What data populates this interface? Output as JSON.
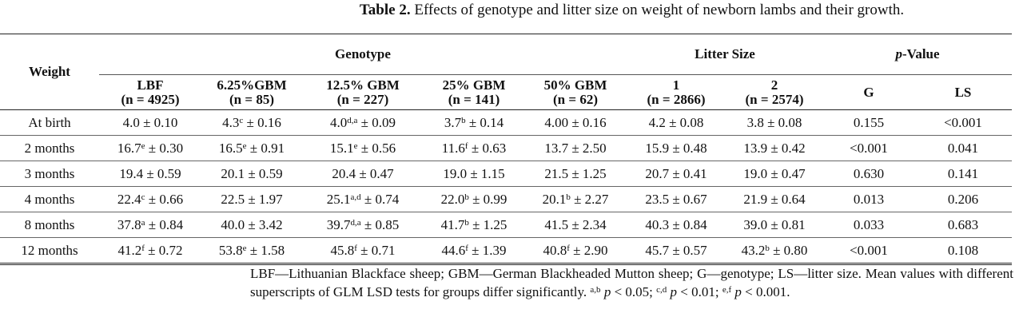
{
  "caption": {
    "label": "Table 2.",
    "text": " Effects of genotype and litter size on weight of newborn lambs and their growth."
  },
  "header": {
    "weight": "Weight",
    "genotype": "Genotype",
    "litter_size": "Litter Size",
    "p_value_p": "p",
    "p_value_rest": "-Value",
    "columns": [
      [
        "LBF",
        "(n = 4925)"
      ],
      [
        "6.25%GBM",
        "(n = 85)"
      ],
      [
        "12.5% GBM",
        "(n = 227)"
      ],
      [
        "25% GBM",
        "(n = 141)"
      ],
      [
        "50% GBM",
        "(n = 62)"
      ],
      [
        "1",
        "(n = 2866)"
      ],
      [
        "2",
        "(n = 2574)"
      ],
      [
        "G",
        ""
      ],
      [
        "LS",
        ""
      ]
    ]
  },
  "rows": [
    {
      "label": "At birth",
      "cells": [
        [
          "4.0",
          "",
          "0.10"
        ],
        [
          "4.3",
          "c",
          "0.16"
        ],
        [
          "4.0",
          "d,a",
          "0.09"
        ],
        [
          "3.7",
          "b",
          "0.14"
        ],
        [
          "4.00",
          "",
          "0.16"
        ],
        [
          "4.2",
          "",
          "0.08"
        ],
        [
          "3.8",
          "",
          "0.08"
        ]
      ],
      "G": "0.155",
      "LS": "<0.001"
    },
    {
      "label": "2 months",
      "cells": [
        [
          "16.7",
          "e",
          "0.30"
        ],
        [
          "16.5",
          "e",
          "0.91"
        ],
        [
          "15.1",
          "e",
          "0.56"
        ],
        [
          "11.6",
          "f",
          "0.63"
        ],
        [
          "13.7",
          "",
          "2.50"
        ],
        [
          "15.9",
          "",
          "0.48"
        ],
        [
          "13.9",
          "",
          "0.42"
        ]
      ],
      "G": "<0.001",
      "LS": "0.041"
    },
    {
      "label": "3 months",
      "cells": [
        [
          "19.4",
          "",
          "0.59"
        ],
        [
          "20.1",
          "",
          "0.59"
        ],
        [
          "20.4",
          "",
          "0.47"
        ],
        [
          "19.0",
          "",
          "1.15"
        ],
        [
          "21.5",
          "",
          "1.25"
        ],
        [
          "20.7",
          "",
          "0.41"
        ],
        [
          "19.0",
          "",
          "0.47"
        ]
      ],
      "G": "0.630",
      "LS": "0.141"
    },
    {
      "label": "4 months",
      "cells": [
        [
          "22.4",
          "c",
          "0.66"
        ],
        [
          "22.5",
          "",
          "1.97"
        ],
        [
          "25.1",
          "a,d",
          "0.74"
        ],
        [
          "22.0",
          "b",
          "0.99"
        ],
        [
          "20.1",
          "b",
          "2.27"
        ],
        [
          "23.5",
          "",
          "0.67"
        ],
        [
          "21.9",
          "",
          "0.64"
        ]
      ],
      "G": "0.013",
      "LS": "0.206"
    },
    {
      "label": "8 months",
      "cells": [
        [
          "37.8",
          "a",
          "0.84"
        ],
        [
          "40.0",
          "",
          "3.42"
        ],
        [
          "39.7",
          "d,a",
          "0.85"
        ],
        [
          "41.7",
          "b",
          "1.25"
        ],
        [
          "41.5",
          "",
          "2.34"
        ],
        [
          "40.3",
          "",
          "0.84"
        ],
        [
          "39.0",
          "",
          "0.81"
        ]
      ],
      "G": "0.033",
      "LS": "0.683"
    },
    {
      "label": "12 months",
      "cells": [
        [
          "41.2",
          "f",
          "0.72"
        ],
        [
          "53.8",
          "e",
          "1.58"
        ],
        [
          "45.8",
          "f",
          "0.71"
        ],
        [
          "44.6",
          "f",
          "1.39"
        ],
        [
          "40.8",
          "f",
          "2.90"
        ],
        [
          "45.7",
          "",
          "0.57"
        ],
        [
          "43.2",
          "b",
          "0.80"
        ]
      ],
      "G": "<0.001",
      "LS": "0.108"
    }
  ],
  "footnote": {
    "line1": "LBF—Lithuanian Blackface sheep; GBM—German Blackheaded Mutton sheep; G—genotype; LS—litter size. Mean values with different superscripts of GLM LSD tests for groups differ significantly. ",
    "s1": "a,b",
    "t1": " < 0.05; ",
    "s2": "c,d",
    "t2": " < 0.01; ",
    "s3": "e,f",
    "t3": " < 0.001.",
    "p": "p"
  }
}
